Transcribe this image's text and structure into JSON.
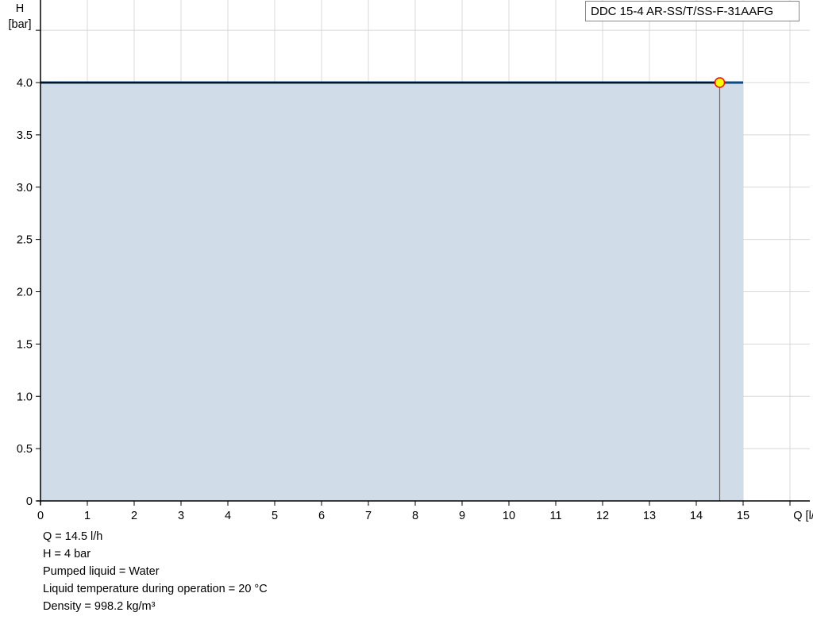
{
  "chart_data": {
    "type": "area",
    "title": "",
    "xlabel": "Q [l/h]",
    "ylabel_line1": "H",
    "ylabel_line2": "[bar]",
    "xlim": [
      0,
      16.5
    ],
    "ylim": [
      0,
      4.8
    ],
    "grid": true,
    "x_ticks": [
      0,
      1,
      2,
      3,
      4,
      5,
      6,
      7,
      8,
      9,
      10,
      11,
      12,
      13,
      14,
      15,
      16
    ],
    "x_tick_labels": [
      "0",
      "1",
      "2",
      "3",
      "4",
      "5",
      "6",
      "7",
      "8",
      "9",
      "10",
      "11",
      "12",
      "13",
      "14",
      "15"
    ],
    "y_ticks": [
      0,
      0.5,
      1,
      1.5,
      2,
      2.5,
      3,
      3.5,
      4,
      4.5
    ],
    "y_tick_labels": [
      "0",
      "0.5",
      "1.0",
      "1.5",
      "2.0",
      "2.5",
      "3.0",
      "3.5",
      "4.0"
    ],
    "series": [
      {
        "name": "DDC 15-4 AR-SS/T/SS-F-31AAFG",
        "x": [
          0,
          15
        ],
        "y": [
          4.0,
          4.0
        ],
        "color": "#0b4a85",
        "fill": "#d0dce8"
      }
    ],
    "operating_point": {
      "x": 14.5,
      "y": 4.0,
      "fill": "#ffff00",
      "stroke": "#ff0000"
    },
    "legend": {
      "position": "top-right"
    }
  },
  "info": [
    "Q = 14.5 l/h",
    "H = 4 bar",
    "Pumped liquid = Water",
    "Liquid temperature during operation = 20 °C",
    "Density = 998.2 kg/m³"
  ]
}
